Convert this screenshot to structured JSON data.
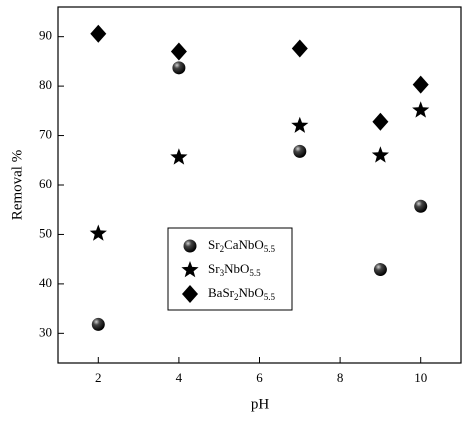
{
  "chart_data": {
    "type": "scatter",
    "x_label": "pH",
    "y_label": "Removal %",
    "xlim": [
      1,
      11
    ],
    "ylim": [
      24,
      96
    ],
    "xticks": [
      2,
      4,
      6,
      8,
      10
    ],
    "yticks": [
      30,
      40,
      50,
      60,
      70,
      80,
      90
    ],
    "series": [
      {
        "name": "Sr2CaNbO5.5",
        "marker": "circle",
        "color": "#000000",
        "x": [
          2,
          4,
          7,
          9,
          10
        ],
        "values": [
          31.8,
          83.7,
          66.8,
          42.9,
          55.7
        ]
      },
      {
        "name": "Sr3NbO5.5",
        "marker": "star",
        "color": "#000000",
        "x": [
          2,
          4,
          7,
          9,
          10
        ],
        "values": [
          50.2,
          65.6,
          72.0,
          66.0,
          75.1
        ]
      },
      {
        "name": "BaSr2NbO5.5",
        "marker": "diamond",
        "color": "#000000",
        "x": [
          2,
          4,
          7,
          9,
          10
        ],
        "values": [
          90.6,
          87.0,
          87.6,
          72.8,
          80.3
        ]
      }
    ]
  }
}
